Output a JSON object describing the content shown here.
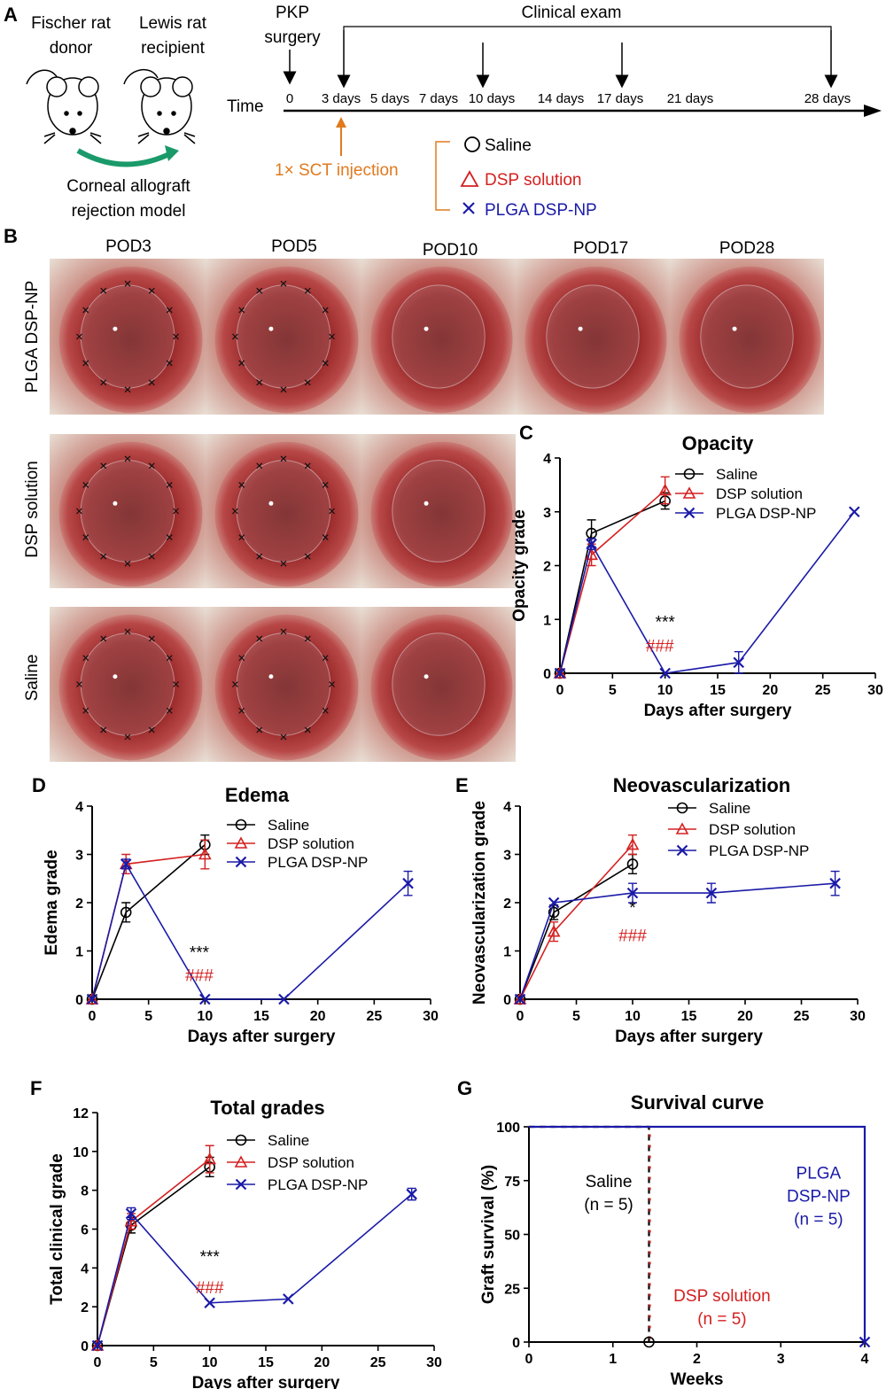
{
  "panels": {
    "A": "A",
    "B": "B",
    "C": "C",
    "D": "D",
    "E": "E",
    "F": "F",
    "G": "G"
  },
  "schematic": {
    "donor_line1": "Fischer rat",
    "donor_line2": "donor",
    "recipient_line1": "Lewis rat",
    "recipient_line2": "recipient",
    "model_line1": "Corneal allograft",
    "model_line2": "rejection model",
    "pkp_line1": "PKP",
    "pkp_line2": "surgery",
    "clinical_exam": "Clinical exam",
    "time_label": "Time",
    "timeline_ticks": [
      "0",
      "3 days",
      "5 days",
      "7 days",
      "10 days",
      "14 days",
      "17 days",
      "21 days",
      "28 days"
    ],
    "injection": "1× SCT injection",
    "groups": [
      {
        "label": "Saline",
        "symbol": "○",
        "color": "#000000"
      },
      {
        "label": "DSP solution",
        "symbol": "△",
        "color": "#d42020"
      },
      {
        "label": "PLGA DSP-NP",
        "symbol": "×",
        "color": "#1a1aa8"
      }
    ],
    "accent_orange": "#e07a1f",
    "arrow_green": "#1a9a6a"
  },
  "photos": {
    "columns": [
      "POD3",
      "POD5",
      "POD10",
      "POD17",
      "POD28"
    ],
    "rows": [
      "PLGA DSP-NP",
      "DSP solution",
      "Saline"
    ]
  },
  "chart_data": [
    {
      "id": "C",
      "type": "line",
      "title": "Opacity",
      "xlabel": "Days after surgery",
      "ylabel": "Opacity grade",
      "xlim": [
        0,
        30
      ],
      "ylim": [
        0,
        4
      ],
      "xticks": [
        "0",
        "5",
        "10",
        "15",
        "20",
        "25",
        "30"
      ],
      "yticks": [
        "0",
        "1",
        "2",
        "3",
        "4"
      ],
      "series": [
        {
          "name": "Saline",
          "color": "#000000",
          "marker": "circle",
          "x": [
            0,
            3,
            10
          ],
          "y": [
            0,
            2.6,
            3.2
          ],
          "err": [
            0,
            0.25,
            0.15
          ]
        },
        {
          "name": "DSP solution",
          "color": "#d42020",
          "marker": "triangle",
          "x": [
            0,
            3,
            10
          ],
          "y": [
            0,
            2.2,
            3.4
          ],
          "err": [
            0,
            0.2,
            0.25
          ]
        },
        {
          "name": "PLGA DSP-NP",
          "color": "#1a1aa8",
          "marker": "x",
          "x": [
            0,
            3,
            10,
            17,
            28
          ],
          "y": [
            0,
            2.4,
            0,
            0.2,
            3.0
          ],
          "err": [
            0,
            0.1,
            0,
            0.2,
            0
          ]
        }
      ],
      "annotations": [
        {
          "text": "***",
          "x": 10,
          "y": 0.85,
          "color": "#000000"
        },
        {
          "text": "###",
          "x": 9.5,
          "y": 0.4,
          "color": "#d42020"
        }
      ]
    },
    {
      "id": "D",
      "type": "line",
      "title": "Edema",
      "xlabel": "Days after surgery",
      "ylabel": "Edema grade",
      "xlim": [
        0,
        30
      ],
      "ylim": [
        0,
        4
      ],
      "xticks": [
        "0",
        "5",
        "10",
        "15",
        "20",
        "25",
        "30"
      ],
      "yticks": [
        "0",
        "1",
        "2",
        "3",
        "4"
      ],
      "series": [
        {
          "name": "Saline",
          "color": "#000000",
          "marker": "circle",
          "x": [
            0,
            3,
            10
          ],
          "y": [
            0,
            1.8,
            3.2
          ],
          "err": [
            0,
            0.2,
            0.2
          ]
        },
        {
          "name": "DSP solution",
          "color": "#d42020",
          "marker": "triangle",
          "x": [
            0,
            3,
            10
          ],
          "y": [
            0,
            2.8,
            3.0
          ],
          "err": [
            0,
            0.2,
            0.3
          ]
        },
        {
          "name": "PLGA DSP-NP",
          "color": "#1a1aa8",
          "marker": "x",
          "x": [
            0,
            3,
            10,
            17,
            28
          ],
          "y": [
            0,
            2.8,
            0,
            0,
            2.4
          ],
          "err": [
            0,
            0.1,
            0,
            0,
            0.25
          ]
        }
      ],
      "annotations": [
        {
          "text": "***",
          "x": 9.5,
          "y": 0.85,
          "color": "#000000"
        },
        {
          "text": "###",
          "x": 9.5,
          "y": 0.38,
          "color": "#d42020"
        }
      ]
    },
    {
      "id": "E",
      "type": "line",
      "title": "Neovascularization",
      "xlabel": "Days after surgery",
      "ylabel": "Neovascularization grade",
      "xlim": [
        0,
        30
      ],
      "ylim": [
        0,
        4
      ],
      "xticks": [
        "0",
        "5",
        "10",
        "15",
        "20",
        "25",
        "30"
      ],
      "yticks": [
        "0",
        "1",
        "2",
        "3",
        "4"
      ],
      "series": [
        {
          "name": "Saline",
          "color": "#000000",
          "marker": "circle",
          "x": [
            0,
            3,
            10
          ],
          "y": [
            0,
            1.8,
            2.8
          ],
          "err": [
            0,
            0.15,
            0.2
          ]
        },
        {
          "name": "DSP solution",
          "color": "#d42020",
          "marker": "triangle",
          "x": [
            0,
            3,
            10
          ],
          "y": [
            0,
            1.4,
            3.2
          ],
          "err": [
            0,
            0.2,
            0.2
          ]
        },
        {
          "name": "PLGA DSP-NP",
          "color": "#1a1aa8",
          "marker": "x",
          "x": [
            0,
            3,
            10,
            17,
            28
          ],
          "y": [
            0,
            2.0,
            2.2,
            2.2,
            2.4
          ],
          "err": [
            0,
            0,
            0.2,
            0.2,
            0.25
          ]
        }
      ],
      "annotations": [
        {
          "text": "*",
          "x": 10,
          "y": 1.78,
          "color": "#000000"
        },
        {
          "text": "###",
          "x": 10,
          "y": 1.2,
          "color": "#d42020"
        }
      ]
    },
    {
      "id": "F",
      "type": "line",
      "title": "Total grades",
      "xlabel": "Days after surgery",
      "ylabel": "Total clinical grade",
      "xlim": [
        0,
        30
      ],
      "ylim": [
        0,
        12
      ],
      "xticks": [
        "0",
        "5",
        "10",
        "15",
        "20",
        "25",
        "30"
      ],
      "yticks": [
        "0",
        "2",
        "4",
        "6",
        "8",
        "10",
        "12"
      ],
      "series": [
        {
          "name": "Saline",
          "color": "#000000",
          "marker": "circle",
          "x": [
            0,
            3,
            10
          ],
          "y": [
            0,
            6.2,
            9.2
          ],
          "err": [
            0,
            0.4,
            0.5
          ]
        },
        {
          "name": "DSP solution",
          "color": "#d42020",
          "marker": "triangle",
          "x": [
            0,
            3,
            10
          ],
          "y": [
            0,
            6.4,
            9.6
          ],
          "err": [
            0,
            0.4,
            0.7
          ]
        },
        {
          "name": "PLGA DSP-NP",
          "color": "#1a1aa8",
          "marker": "x",
          "x": [
            0,
            3,
            10,
            17,
            28
          ],
          "y": [
            0,
            6.8,
            2.2,
            2.4,
            7.8
          ],
          "err": [
            0,
            0.3,
            0,
            0,
            0.3
          ]
        }
      ],
      "annotations": [
        {
          "text": "***",
          "x": 10,
          "y": 4.3,
          "color": "#000000"
        },
        {
          "text": "###",
          "x": 10,
          "y": 2.7,
          "color": "#d42020"
        }
      ]
    },
    {
      "id": "G",
      "type": "line",
      "title": "Survival curve",
      "xlabel": "Weeks",
      "ylabel": "Graft survival (%)",
      "xlim": [
        0,
        4
      ],
      "ylim": [
        0,
        100
      ],
      "xticks": [
        "0",
        "1",
        "2",
        "3",
        "4"
      ],
      "yticks": [
        "0",
        "25",
        "50",
        "75",
        "100"
      ],
      "series": [
        {
          "name": "Saline",
          "color": "#000000",
          "dash": true,
          "x": [
            0,
            1.43,
            1.43
          ],
          "y": [
            100,
            100,
            0
          ]
        },
        {
          "name": "DSP solution",
          "color": "#d42020",
          "dash": true,
          "x": [
            0,
            1.43,
            1.43
          ],
          "y": [
            100,
            100,
            0
          ]
        },
        {
          "name": "PLGA DSP-NP",
          "color": "#1a1aa8",
          "dash": false,
          "x": [
            0,
            4,
            4
          ],
          "y": [
            100,
            100,
            0
          ]
        }
      ],
      "text_labels": [
        {
          "lines": [
            "Saline",
            "(n = 5)"
          ],
          "color": "#000000",
          "x": 0.95,
          "y": 72
        },
        {
          "lines": [
            "DSP solution",
            "(n = 5)"
          ],
          "color": "#d42020",
          "x": 2.3,
          "y": 19
        },
        {
          "lines": [
            "PLGA",
            "DSP-NP",
            "(n = 5)"
          ],
          "color": "#1a1aa8",
          "x": 3.45,
          "y": 76
        }
      ]
    }
  ]
}
